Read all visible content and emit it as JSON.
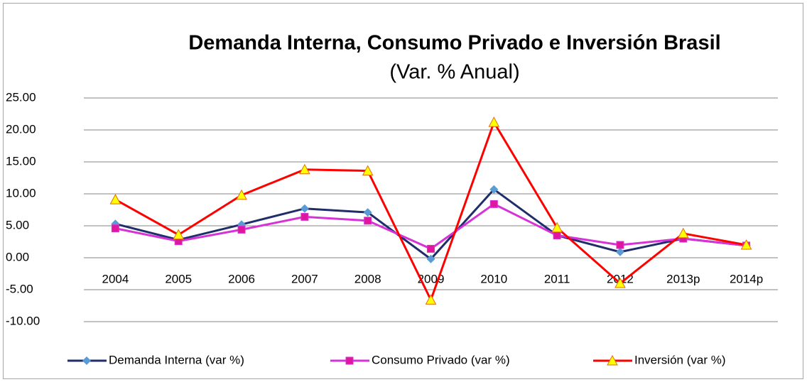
{
  "chart_data": {
    "type": "line",
    "title": "Demanda Interna, Consumo Privado e Inversión Brasil",
    "subtitle": "(Var. % Anual)",
    "categories": [
      "2004",
      "2005",
      "2006",
      "2007",
      "2008",
      "2009",
      "2010",
      "2011",
      "2012",
      "2013p",
      "2014p"
    ],
    "series": [
      {
        "name": "Demanda Interna (var %)",
        "color": "#1f2d6b",
        "marker": "diamond",
        "marker_color": "#5b9bd5",
        "values": [
          5.3,
          2.8,
          5.2,
          7.7,
          7.1,
          -0.2,
          10.7,
          3.5,
          0.9,
          3.0,
          1.9
        ]
      },
      {
        "name": "Consumo Privado (var %)",
        "color": "#d633d6",
        "marker": "square",
        "marker_color": "#e0179e",
        "values": [
          4.6,
          2.6,
          4.4,
          6.4,
          5.8,
          1.4,
          8.4,
          3.5,
          2.0,
          3.0,
          1.9
        ]
      },
      {
        "name": "Inversión (var %)",
        "color": "#ff0000",
        "marker": "triangle",
        "marker_color": "#ffff00",
        "values": [
          9.1,
          3.6,
          9.8,
          13.8,
          13.6,
          -6.6,
          21.2,
          4.7,
          -4.0,
          3.8,
          2.0
        ]
      }
    ],
    "ylim": [
      -10,
      25
    ],
    "yticks": [
      {
        "value": -10,
        "label": "-10.00"
      },
      {
        "value": -5,
        "label": "-5.00"
      },
      {
        "value": 0,
        "label": "0.00"
      },
      {
        "value": 5,
        "label": "5.00"
      },
      {
        "value": 10,
        "label": "10.00"
      },
      {
        "value": 15,
        "label": "15.00"
      },
      {
        "value": 20,
        "label": "20.00"
      },
      {
        "value": 25,
        "label": "25.00"
      }
    ],
    "grid": true,
    "legend": "bottom"
  }
}
